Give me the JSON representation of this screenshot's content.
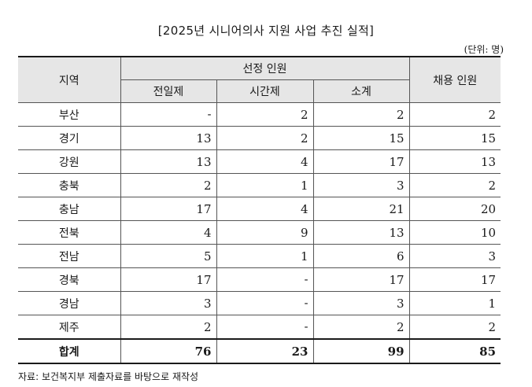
{
  "title": "[2025년 시니어의사 지원 사업 추진 실적]",
  "unit": "(단위: 명)",
  "headers": {
    "region": "지역",
    "selected": "선정 인원",
    "full_time": "전일제",
    "part_time": "시간제",
    "subtotal": "소계",
    "hired": "채용 인원"
  },
  "rows": [
    {
      "region": "부산",
      "full_time": "-",
      "part_time": "2",
      "subtotal": "2",
      "hired": "2"
    },
    {
      "region": "경기",
      "full_time": "13",
      "part_time": "2",
      "subtotal": "15",
      "hired": "15"
    },
    {
      "region": "강원",
      "full_time": "13",
      "part_time": "4",
      "subtotal": "17",
      "hired": "13"
    },
    {
      "region": "충북",
      "full_time": "2",
      "part_time": "1",
      "subtotal": "3",
      "hired": "2"
    },
    {
      "region": "충남",
      "full_time": "17",
      "part_time": "4",
      "subtotal": "21",
      "hired": "20"
    },
    {
      "region": "전북",
      "full_time": "4",
      "part_time": "9",
      "subtotal": "13",
      "hired": "10"
    },
    {
      "region": "전남",
      "full_time": "5",
      "part_time": "1",
      "subtotal": "6",
      "hired": "3"
    },
    {
      "region": "경북",
      "full_time": "17",
      "part_time": "-",
      "subtotal": "17",
      "hired": "17"
    },
    {
      "region": "경남",
      "full_time": "3",
      "part_time": "-",
      "subtotal": "3",
      "hired": "1"
    },
    {
      "region": "제주",
      "full_time": "2",
      "part_time": "-",
      "subtotal": "2",
      "hired": "2"
    }
  ],
  "total": {
    "region": "합계",
    "full_time": "76",
    "part_time": "23",
    "subtotal": "99",
    "hired": "85"
  },
  "source": "자료: 보건복지부 제출자료를 바탕으로 재작성"
}
